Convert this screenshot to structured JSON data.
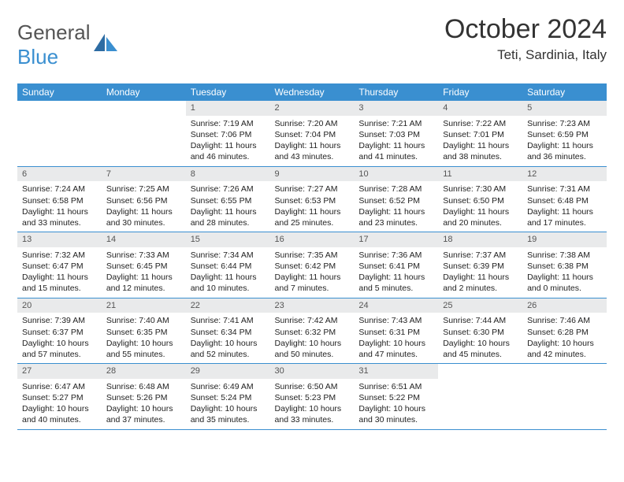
{
  "logo": {
    "word1": "General",
    "word2": "Blue"
  },
  "title": {
    "month": "October 2024",
    "location": "Teti, Sardinia, Italy"
  },
  "weekdays": [
    "Sunday",
    "Monday",
    "Tuesday",
    "Wednesday",
    "Thursday",
    "Friday",
    "Saturday"
  ],
  "colors": {
    "header_bg": "#3a8fd0",
    "header_text": "#ffffff",
    "daynum_bg": "#e9eaeb",
    "cell_border": "#3a8fd0",
    "body_text": "#222222",
    "logo_gray": "#555555",
    "logo_blue": "#3a8fd0"
  },
  "weeks": [
    [
      {
        "day": "",
        "sunrise": "",
        "sunset": "",
        "daylight1": "",
        "daylight2": ""
      },
      {
        "day": "",
        "sunrise": "",
        "sunset": "",
        "daylight1": "",
        "daylight2": ""
      },
      {
        "day": "1",
        "sunrise": "Sunrise: 7:19 AM",
        "sunset": "Sunset: 7:06 PM",
        "daylight1": "Daylight: 11 hours",
        "daylight2": "and 46 minutes."
      },
      {
        "day": "2",
        "sunrise": "Sunrise: 7:20 AM",
        "sunset": "Sunset: 7:04 PM",
        "daylight1": "Daylight: 11 hours",
        "daylight2": "and 43 minutes."
      },
      {
        "day": "3",
        "sunrise": "Sunrise: 7:21 AM",
        "sunset": "Sunset: 7:03 PM",
        "daylight1": "Daylight: 11 hours",
        "daylight2": "and 41 minutes."
      },
      {
        "day": "4",
        "sunrise": "Sunrise: 7:22 AM",
        "sunset": "Sunset: 7:01 PM",
        "daylight1": "Daylight: 11 hours",
        "daylight2": "and 38 minutes."
      },
      {
        "day": "5",
        "sunrise": "Sunrise: 7:23 AM",
        "sunset": "Sunset: 6:59 PM",
        "daylight1": "Daylight: 11 hours",
        "daylight2": "and 36 minutes."
      }
    ],
    [
      {
        "day": "6",
        "sunrise": "Sunrise: 7:24 AM",
        "sunset": "Sunset: 6:58 PM",
        "daylight1": "Daylight: 11 hours",
        "daylight2": "and 33 minutes."
      },
      {
        "day": "7",
        "sunrise": "Sunrise: 7:25 AM",
        "sunset": "Sunset: 6:56 PM",
        "daylight1": "Daylight: 11 hours",
        "daylight2": "and 30 minutes."
      },
      {
        "day": "8",
        "sunrise": "Sunrise: 7:26 AM",
        "sunset": "Sunset: 6:55 PM",
        "daylight1": "Daylight: 11 hours",
        "daylight2": "and 28 minutes."
      },
      {
        "day": "9",
        "sunrise": "Sunrise: 7:27 AM",
        "sunset": "Sunset: 6:53 PM",
        "daylight1": "Daylight: 11 hours",
        "daylight2": "and 25 minutes."
      },
      {
        "day": "10",
        "sunrise": "Sunrise: 7:28 AM",
        "sunset": "Sunset: 6:52 PM",
        "daylight1": "Daylight: 11 hours",
        "daylight2": "and 23 minutes."
      },
      {
        "day": "11",
        "sunrise": "Sunrise: 7:30 AM",
        "sunset": "Sunset: 6:50 PM",
        "daylight1": "Daylight: 11 hours",
        "daylight2": "and 20 minutes."
      },
      {
        "day": "12",
        "sunrise": "Sunrise: 7:31 AM",
        "sunset": "Sunset: 6:48 PM",
        "daylight1": "Daylight: 11 hours",
        "daylight2": "and 17 minutes."
      }
    ],
    [
      {
        "day": "13",
        "sunrise": "Sunrise: 7:32 AM",
        "sunset": "Sunset: 6:47 PM",
        "daylight1": "Daylight: 11 hours",
        "daylight2": "and 15 minutes."
      },
      {
        "day": "14",
        "sunrise": "Sunrise: 7:33 AM",
        "sunset": "Sunset: 6:45 PM",
        "daylight1": "Daylight: 11 hours",
        "daylight2": "and 12 minutes."
      },
      {
        "day": "15",
        "sunrise": "Sunrise: 7:34 AM",
        "sunset": "Sunset: 6:44 PM",
        "daylight1": "Daylight: 11 hours",
        "daylight2": "and 10 minutes."
      },
      {
        "day": "16",
        "sunrise": "Sunrise: 7:35 AM",
        "sunset": "Sunset: 6:42 PM",
        "daylight1": "Daylight: 11 hours",
        "daylight2": "and 7 minutes."
      },
      {
        "day": "17",
        "sunrise": "Sunrise: 7:36 AM",
        "sunset": "Sunset: 6:41 PM",
        "daylight1": "Daylight: 11 hours",
        "daylight2": "and 5 minutes."
      },
      {
        "day": "18",
        "sunrise": "Sunrise: 7:37 AM",
        "sunset": "Sunset: 6:39 PM",
        "daylight1": "Daylight: 11 hours",
        "daylight2": "and 2 minutes."
      },
      {
        "day": "19",
        "sunrise": "Sunrise: 7:38 AM",
        "sunset": "Sunset: 6:38 PM",
        "daylight1": "Daylight: 11 hours",
        "daylight2": "and 0 minutes."
      }
    ],
    [
      {
        "day": "20",
        "sunrise": "Sunrise: 7:39 AM",
        "sunset": "Sunset: 6:37 PM",
        "daylight1": "Daylight: 10 hours",
        "daylight2": "and 57 minutes."
      },
      {
        "day": "21",
        "sunrise": "Sunrise: 7:40 AM",
        "sunset": "Sunset: 6:35 PM",
        "daylight1": "Daylight: 10 hours",
        "daylight2": "and 55 minutes."
      },
      {
        "day": "22",
        "sunrise": "Sunrise: 7:41 AM",
        "sunset": "Sunset: 6:34 PM",
        "daylight1": "Daylight: 10 hours",
        "daylight2": "and 52 minutes."
      },
      {
        "day": "23",
        "sunrise": "Sunrise: 7:42 AM",
        "sunset": "Sunset: 6:32 PM",
        "daylight1": "Daylight: 10 hours",
        "daylight2": "and 50 minutes."
      },
      {
        "day": "24",
        "sunrise": "Sunrise: 7:43 AM",
        "sunset": "Sunset: 6:31 PM",
        "daylight1": "Daylight: 10 hours",
        "daylight2": "and 47 minutes."
      },
      {
        "day": "25",
        "sunrise": "Sunrise: 7:44 AM",
        "sunset": "Sunset: 6:30 PM",
        "daylight1": "Daylight: 10 hours",
        "daylight2": "and 45 minutes."
      },
      {
        "day": "26",
        "sunrise": "Sunrise: 7:46 AM",
        "sunset": "Sunset: 6:28 PM",
        "daylight1": "Daylight: 10 hours",
        "daylight2": "and 42 minutes."
      }
    ],
    [
      {
        "day": "27",
        "sunrise": "Sunrise: 6:47 AM",
        "sunset": "Sunset: 5:27 PM",
        "daylight1": "Daylight: 10 hours",
        "daylight2": "and 40 minutes."
      },
      {
        "day": "28",
        "sunrise": "Sunrise: 6:48 AM",
        "sunset": "Sunset: 5:26 PM",
        "daylight1": "Daylight: 10 hours",
        "daylight2": "and 37 minutes."
      },
      {
        "day": "29",
        "sunrise": "Sunrise: 6:49 AM",
        "sunset": "Sunset: 5:24 PM",
        "daylight1": "Daylight: 10 hours",
        "daylight2": "and 35 minutes."
      },
      {
        "day": "30",
        "sunrise": "Sunrise: 6:50 AM",
        "sunset": "Sunset: 5:23 PM",
        "daylight1": "Daylight: 10 hours",
        "daylight2": "and 33 minutes."
      },
      {
        "day": "31",
        "sunrise": "Sunrise: 6:51 AM",
        "sunset": "Sunset: 5:22 PM",
        "daylight1": "Daylight: 10 hours",
        "daylight2": "and 30 minutes."
      },
      {
        "day": "",
        "sunrise": "",
        "sunset": "",
        "daylight1": "",
        "daylight2": ""
      },
      {
        "day": "",
        "sunrise": "",
        "sunset": "",
        "daylight1": "",
        "daylight2": ""
      }
    ]
  ]
}
